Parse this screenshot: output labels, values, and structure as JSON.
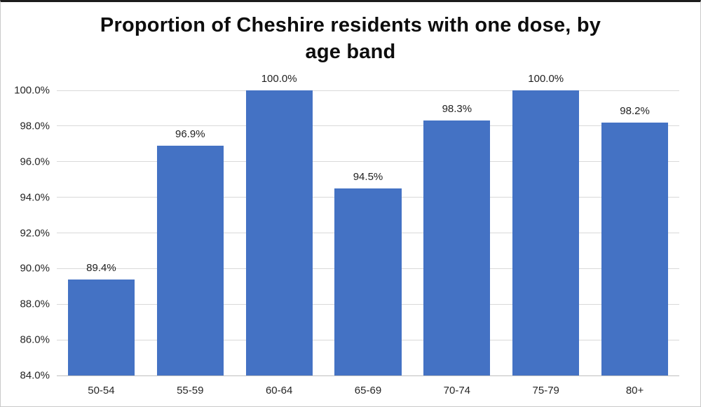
{
  "frame": {
    "background": "#ffffff",
    "border_color": "#c9c9c9",
    "top_border_color": "#1c1c1c"
  },
  "chart_data": {
    "type": "bar",
    "title": "Proportion of Cheshire residents with one dose, by age band",
    "title_lines": [
      "Proportion of Cheshire residents with one dose, by",
      "age band"
    ],
    "categories": [
      "50-54",
      "55-59",
      "60-64",
      "65-69",
      "70-74",
      "75-79",
      "80+"
    ],
    "values": [
      89.4,
      96.9,
      100.0,
      94.5,
      98.3,
      100.0,
      98.2
    ],
    "value_labels": [
      "89.4%",
      "96.9%",
      "100.0%",
      "94.5%",
      "98.3%",
      "100.0%",
      "98.2%"
    ],
    "xlabel": "",
    "ylabel": "",
    "ylim": [
      84.0,
      100.0
    ],
    "ytick_step": 2.0,
    "ytick_labels_top_to_bottom": [
      "100.0%",
      "98.0%",
      "96.0%",
      "94.0%",
      "92.0%",
      "90.0%",
      "88.0%",
      "86.0%",
      "84.0%"
    ],
    "grid": "horizontal",
    "legend_position": "none",
    "colors": {
      "bar": "#4472C4",
      "gridline": "#d9d9d9",
      "axis_line": "#bfbfbf",
      "tick_text": "#262626",
      "data_label_text": "#1f1f1f",
      "title_text": "#0d0d0d"
    }
  }
}
